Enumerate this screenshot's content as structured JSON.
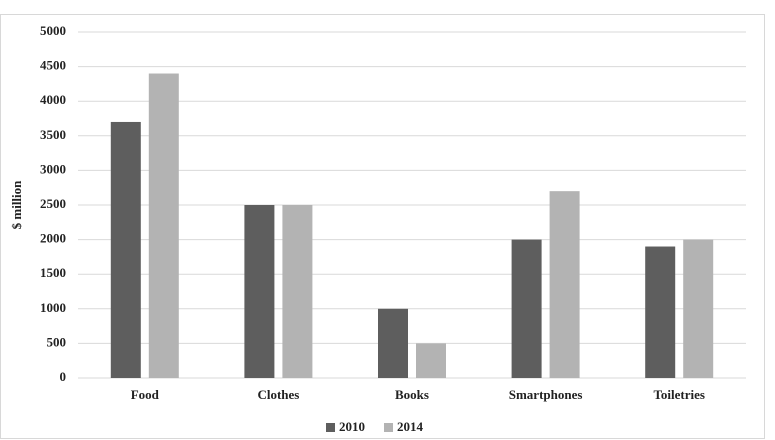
{
  "chart_data": {
    "type": "bar",
    "y_label": "$ million",
    "categories": [
      "Food",
      "Clothes",
      "Books",
      "Smartphones",
      "Toiletries"
    ],
    "series": [
      {
        "name": "2010",
        "color": "#5e5e5e",
        "values": [
          3700,
          2500,
          1000,
          2000,
          1900
        ]
      },
      {
        "name": "2014",
        "color": "#b3b3b3",
        "values": [
          4400,
          2500,
          500,
          2700,
          2000
        ]
      }
    ],
    "ylim": [
      0,
      5000
    ],
    "yticks": [
      0,
      500,
      1000,
      1500,
      2000,
      2500,
      3000,
      3500,
      4000,
      4500,
      5000
    ],
    "grid": true,
    "legend": "bottom"
  }
}
